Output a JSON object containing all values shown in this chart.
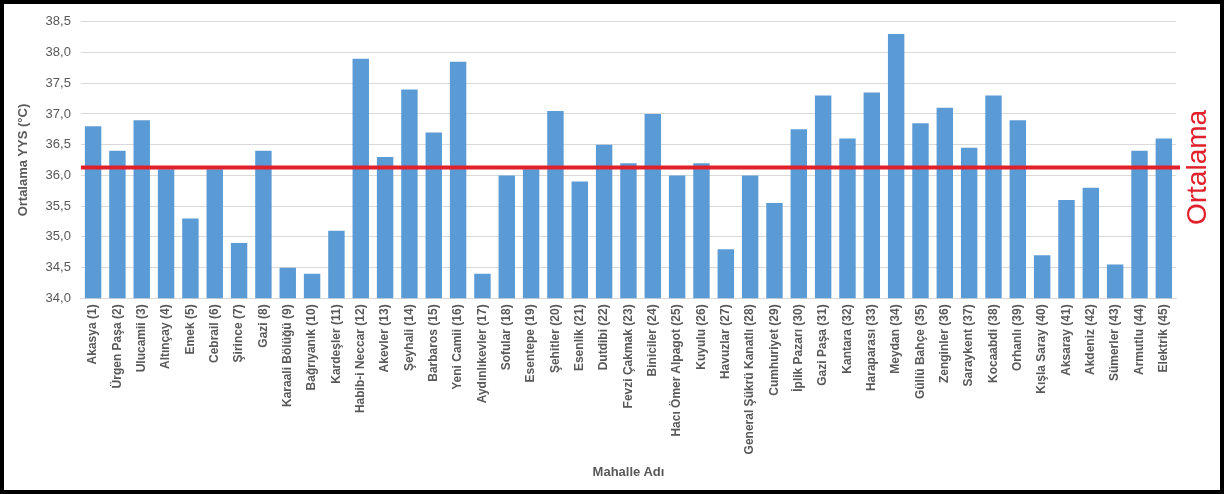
{
  "chart_data": {
    "type": "bar",
    "xlabel": "Mahalle Adı",
    "ylabel": "Ortalama YYS (°C)",
    "categories": [
      "Akasya (1)",
      "Ürgen Paşa (2)",
      "Ulucamii (3)",
      "Altınçay (4)",
      "Emek (5)",
      "Cebrail (6)",
      "Şirince (7)",
      "Gazi (8)",
      "Karaali Bölüğü (9)",
      "Bağrıyanık (10)",
      "Kardeşler (11)",
      "Habib-i Neccar (12)",
      "Akevler (13)",
      "Şeyhali (14)",
      "Barbaros (15)",
      "Yeni Camii (16)",
      "Aydınlıkevler (17)",
      "Sofular (18)",
      "Esentepe (19)",
      "Şehitler (20)",
      "Esenlik (21)",
      "Dutdibi (22)",
      "Fevzi Çakmak (23)",
      "Biniciler (24)",
      "Hacı Ömer Alpagot (25)",
      "Kuyulu (26)",
      "Havuzlar (27)",
      "General Şükrü Kanatlı (28)",
      "Cumhuriyet (29)",
      "İplik Pazarı (30)",
      "Gazi Paşa (31)",
      "Kantara (32)",
      "Haraparası (33)",
      "Meydan (34)",
      "Güllü Bahçe (35)",
      "Zenginler (36)",
      "Saraykent (37)",
      "Kocaabdi (38)",
      "Orhanlı (39)",
      "Kışla Saray (40)",
      "Aksaray (41)",
      "Akdeniz (42)",
      "Sümerler (43)",
      "Armutlu (44)",
      "Elektrik (45)"
    ],
    "values": [
      36.8,
      36.4,
      36.9,
      36.1,
      35.3,
      36.1,
      34.9,
      36.4,
      34.5,
      34.4,
      35.1,
      37.9,
      36.3,
      37.4,
      36.7,
      37.85,
      34.4,
      36.0,
      36.1,
      37.05,
      35.9,
      36.5,
      36.2,
      37.0,
      36.0,
      36.2,
      34.8,
      36.0,
      35.55,
      36.75,
      37.3,
      36.6,
      37.35,
      38.3,
      36.85,
      37.1,
      36.45,
      37.3,
      36.9,
      34.7,
      35.6,
      35.8,
      34.55,
      36.4,
      36.6
    ],
    "color": "#5b9bd5",
    "ylim": [
      34.0,
      38.5
    ],
    "yticks": [
      {
        "value": 34,
        "label": "34,0"
      },
      {
        "value": 34.5,
        "label": "34,5"
      },
      {
        "value": 35,
        "label": "35,0"
      },
      {
        "value": 35.5,
        "label": "35,5"
      },
      {
        "value": 36,
        "label": "36,0"
      },
      {
        "value": 36.5,
        "label": "36,5"
      },
      {
        "value": 37,
        "label": "37,0"
      },
      {
        "value": 37.5,
        "label": "37,5"
      },
      {
        "value": 38,
        "label": "38,0"
      },
      {
        "value": 38.5,
        "label": "38,5"
      }
    ],
    "grid": "y",
    "ref_lines": [
      {
        "axis": "y",
        "value": 36.13,
        "label": "Ortalama",
        "color": "#e0202a"
      }
    ]
  }
}
